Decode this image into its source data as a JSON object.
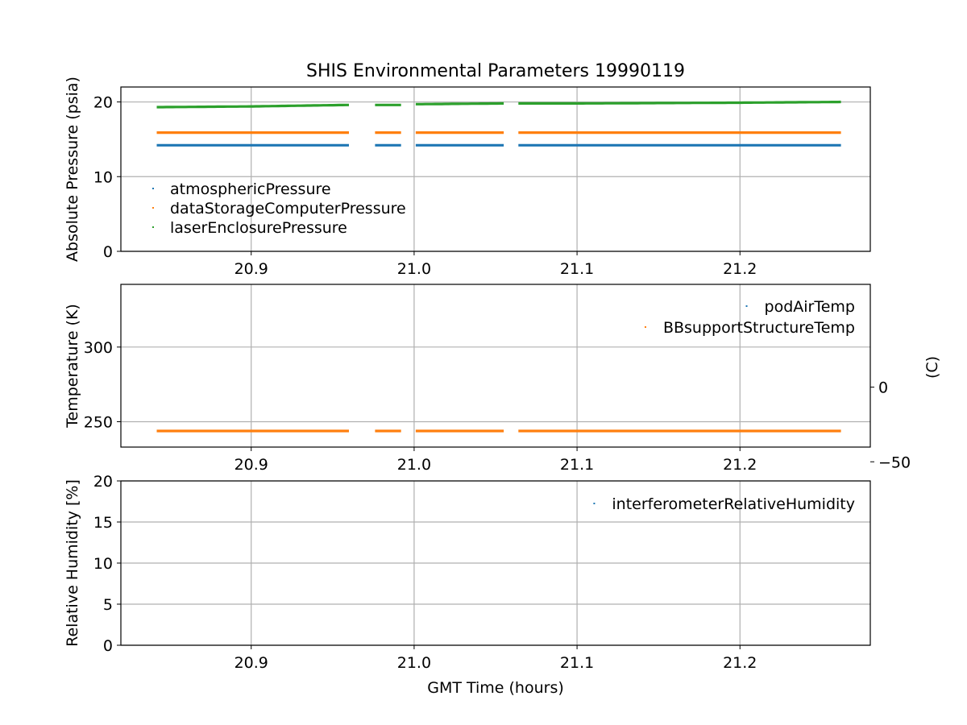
{
  "chart_data": [
    {
      "type": "scatter",
      "title": "SHIS Environmental Parameters 19990119",
      "xlabel": "",
      "ylabel": "Absolute Pressure (psia)",
      "xlim": [
        20.82,
        21.28
      ],
      "ylim": [
        0,
        22
      ],
      "x_ticks": [
        "20.9",
        "21.0",
        "21.1",
        "21.2"
      ],
      "y_ticks": [
        "0",
        "10",
        "20"
      ],
      "grid": true,
      "legend_position": "lower-left",
      "segments": [
        [
          20.842,
          20.96
        ],
        [
          20.976,
          20.992
        ],
        [
          21.001,
          21.055
        ],
        [
          21.064,
          21.262
        ]
      ],
      "series": [
        {
          "name": "atmosphericPressure",
          "color": "#1f77b4",
          "x": [
            20.842,
            20.9,
            20.96,
            20.976,
            20.992,
            21.001,
            21.055,
            21.064,
            21.1,
            21.2,
            21.262
          ],
          "y": [
            14.2,
            14.2,
            14.2,
            14.2,
            14.2,
            14.2,
            14.2,
            14.2,
            14.2,
            14.2,
            14.2
          ]
        },
        {
          "name": "dataStorageComputerPressure",
          "color": "#ff7f0e",
          "x": [
            20.842,
            20.9,
            20.96,
            20.976,
            20.992,
            21.001,
            21.055,
            21.064,
            21.1,
            21.2,
            21.262
          ],
          "y": [
            15.9,
            15.9,
            15.9,
            15.9,
            15.9,
            15.9,
            15.9,
            15.9,
            15.9,
            15.9,
            15.9
          ]
        },
        {
          "name": "laserEnclosurePressure",
          "color": "#2ca02c",
          "x": [
            20.842,
            20.9,
            20.96,
            20.976,
            20.992,
            21.001,
            21.055,
            21.064,
            21.1,
            21.2,
            21.262
          ],
          "y": [
            19.3,
            19.4,
            19.6,
            19.6,
            19.6,
            19.7,
            19.8,
            19.8,
            19.8,
            19.9,
            20.0
          ]
        }
      ]
    },
    {
      "type": "scatter",
      "title": "",
      "xlabel": "",
      "ylabel": "Temperature (K)",
      "ylabel_right": "(C)",
      "xlim": [
        20.82,
        21.28
      ],
      "ylim": [
        233,
        342
      ],
      "x_ticks": [
        "20.9",
        "21.0",
        "21.1",
        "21.2"
      ],
      "y_ticks": [
        "250",
        "300"
      ],
      "y_ticks_right": [
        "0",
        "−50"
      ],
      "grid": true,
      "legend_position": "top-right",
      "series": [
        {
          "name": "podAirTemp",
          "color": "#1f77b4",
          "x": [],
          "y": []
        },
        {
          "name": "BBsupportStructureTemp",
          "color": "#ff7f0e",
          "x": [
            20.842,
            20.9,
            20.96,
            20.976,
            20.992,
            21.001,
            21.055,
            21.064,
            21.1,
            21.2,
            21.262
          ],
          "y": [
            243.8,
            243.8,
            243.8,
            243.8,
            243.8,
            243.8,
            243.8,
            243.8,
            243.8,
            243.8,
            243.8
          ]
        }
      ]
    },
    {
      "type": "scatter",
      "title": "",
      "xlabel": "GMT Time (hours)",
      "ylabel": "Relative Humidity [%]",
      "xlim": [
        20.82,
        21.28
      ],
      "ylim": [
        0,
        20
      ],
      "x_ticks": [
        "20.9",
        "21.0",
        "21.1",
        "21.2"
      ],
      "y_ticks": [
        "0",
        "5",
        "10",
        "15",
        "20"
      ],
      "grid": true,
      "legend_position": "top-right",
      "series": [
        {
          "name": "interferometerRelativeHumidity",
          "color": "#1f77b4",
          "x": [],
          "y": []
        }
      ]
    }
  ]
}
